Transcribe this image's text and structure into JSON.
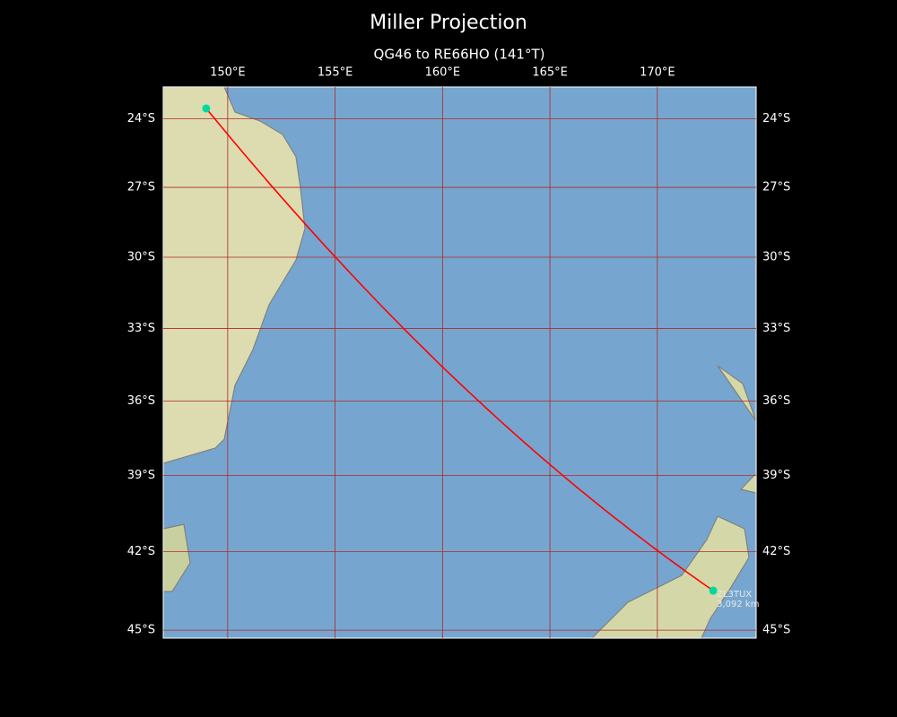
{
  "title": "Miller Projection",
  "subtitle": "QG46 to RE66HO (141°T)",
  "map": {
    "projection": "miller",
    "lonlim": [
      147,
      174.6
    ],
    "latlim": [
      -45.3,
      -22.6
    ],
    "lonticks": [
      {
        "value": 150,
        "label": "150°E"
      },
      {
        "value": 155,
        "label": "155°E"
      },
      {
        "value": 160,
        "label": "160°E"
      },
      {
        "value": 165,
        "label": "165°E"
      },
      {
        "value": 170,
        "label": "170°E"
      }
    ],
    "latticks": [
      {
        "value": -24,
        "label": "24°S"
      },
      {
        "value": -27,
        "label": "27°S"
      },
      {
        "value": -30,
        "label": "30°S"
      },
      {
        "value": -33,
        "label": "33°S"
      },
      {
        "value": -36,
        "label": "36°S"
      },
      {
        "value": -39,
        "label": "39°S"
      },
      {
        "value": -42,
        "label": "42°S"
      },
      {
        "value": -45,
        "label": "45°S"
      }
    ],
    "grid_color": "#b02828",
    "marker_color": "#00d8a0",
    "route": {
      "color": "#ff0000",
      "start": {
        "lon": 149.0,
        "lat": -23.55
      },
      "end": {
        "lon": 172.6,
        "lat": -43.5,
        "label": "ZL3TUX",
        "distance": "3,092 km"
      }
    }
  }
}
